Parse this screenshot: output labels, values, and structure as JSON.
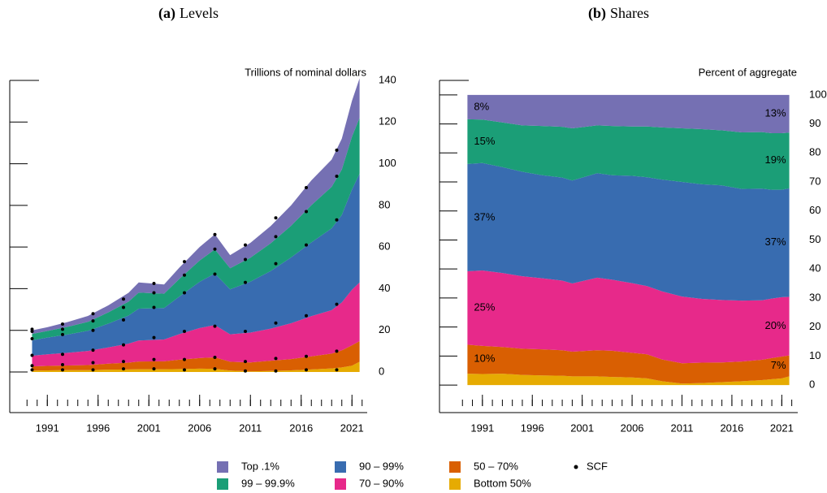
{
  "chart_data": [
    {
      "type": "area",
      "stacked": true,
      "label": "(a)",
      "title": "Levels",
      "ylabel": "Trillions of nominal dollars",
      "x": [
        1989.5,
        1991,
        1993,
        1995,
        1997,
        1999,
        2000,
        2002.5,
        2004,
        2006,
        2007.5,
        2009,
        2011,
        2013,
        2015,
        2017,
        2019,
        2020,
        2021,
        2021.75
      ],
      "series": [
        {
          "name": "Top .1%",
          "color": "#7570b3",
          "values": [
            1.7,
            1.8,
            2.3,
            2.8,
            3.4,
            4.2,
            4.9,
            4.4,
            5.4,
            6.5,
            7.2,
            6.3,
            7.1,
            8.3,
            9.8,
            11.9,
            13.1,
            14.8,
            17.2,
            19.0
          ]
        },
        {
          "name": "99 – 99.9%",
          "color": "#1b9e77",
          "values": [
            3.1,
            3.2,
            3.7,
            4.3,
            5.4,
            6.7,
            7.7,
            6.9,
            8.5,
            10.2,
            11.6,
            10.1,
            11.5,
            13.3,
            15.2,
            17.9,
            19.9,
            21.8,
            25.4,
            26.8
          ]
        },
        {
          "name": "90 – 99%",
          "color": "#386cb0",
          "values": [
            7.4,
            8.0,
            8.8,
            9.7,
            11.4,
            13.5,
            15.3,
            15.1,
            18.0,
            22.2,
            24.8,
            21.6,
            24.5,
            27.7,
            31.6,
            35.4,
            39.3,
            42.0,
            48.1,
            52.2
          ]
        },
        {
          "name": "70 – 90%",
          "color": "#e7298a",
          "values": [
            5.1,
            5.6,
            6.1,
            6.8,
            7.8,
            9.1,
            10.1,
            10.5,
            12.3,
            14.4,
            15.5,
            13.2,
            14.3,
            15.4,
            17.2,
            19.3,
            20.9,
            23.0,
            26.7,
            28.2
          ]
        },
        {
          "name": "50 – 70%",
          "color": "#d95f02",
          "values": [
            2.0,
            2.1,
            2.2,
            2.4,
            2.9,
            3.3,
            3.7,
            3.8,
            4.5,
            5.1,
            5.5,
            4.2,
            4.3,
            4.9,
            5.4,
            6.3,
            7.1,
            8.2,
            9.8,
            9.9
          ]
        },
        {
          "name": "Bottom 50%",
          "color": "#e6ab02",
          "values": [
            0.7,
            0.8,
            0.9,
            0.9,
            1.1,
            1.2,
            1.3,
            1.3,
            1.4,
            1.6,
            1.5,
            0.7,
            0.3,
            0.5,
            0.8,
            1.2,
            1.7,
            2.2,
            3.0,
            4.9
          ]
        }
      ],
      "scf": {
        "name": "SCF",
        "color": "#000000",
        "x": [
          1989.5,
          1992.5,
          1995.5,
          1998.5,
          2001.5,
          2004.5,
          2007.5,
          2010.5,
          2013.5,
          2016.5,
          2019.5
        ],
        "values": [
          [
            1,
            3,
            8,
            16,
            19.5,
            20.5
          ],
          [
            1,
            3.5,
            8.5,
            18,
            20.5,
            23
          ],
          [
            1,
            4.5,
            10.5,
            20,
            24.5,
            28
          ],
          [
            1.5,
            5,
            13,
            25,
            31,
            35
          ],
          [
            1.5,
            6,
            16.5,
            31,
            38,
            42.5
          ],
          [
            1,
            6,
            19.5,
            38,
            46.5,
            53
          ],
          [
            1.5,
            7,
            22,
            47,
            59,
            66
          ],
          [
            0.5,
            5,
            19.5,
            43,
            54,
            61
          ],
          [
            0.5,
            6.5,
            23.5,
            52,
            65,
            74
          ],
          [
            1,
            7.5,
            27,
            61,
            77,
            88.5
          ],
          [
            1,
            10,
            32.5,
            73,
            94,
            106.5
          ]
        ]
      },
      "xlim": [
        1987.3,
        2022.5
      ],
      "xticks": [
        1991,
        1996,
        2001,
        2006,
        2011,
        2016,
        2021
      ],
      "xminorticks": [
        1989,
        1990,
        1991,
        1992,
        1993,
        1994,
        1995,
        1996,
        1997,
        1998,
        1999,
        2000,
        2001,
        2002,
        2003,
        2004,
        2005,
        2006,
        2007,
        2008,
        2009,
        2010,
        2011,
        2012,
        2013,
        2014,
        2015,
        2016,
        2017,
        2018,
        2019,
        2020,
        2021,
        2022
      ],
      "ylim": [
        -19.5,
        140
      ],
      "yticks": [
        0,
        20,
        40,
        60,
        80,
        100,
        120,
        140
      ]
    },
    {
      "type": "area",
      "stacked": true,
      "label": "(b)",
      "title": "Shares",
      "ylabel": "Percent of aggregate",
      "x": [
        1989.5,
        1991,
        1993,
        1995,
        1997,
        1999,
        2000,
        2002.5,
        2004,
        2006,
        2007.5,
        2009,
        2011,
        2013,
        2015,
        2017,
        2019,
        2020,
        2021,
        2021.75
      ],
      "series": [
        {
          "name": "Top .1%",
          "color": "#7570b3",
          "values": [
            8.4,
            8.5,
            9.5,
            10.5,
            10.7,
            11,
            11.5,
            10.5,
            10.7,
            10.9,
            10.9,
            11.2,
            11.5,
            11.8,
            12.2,
            12.9,
            12.8,
            13.2,
            13.2,
            13.0
          ],
          "value_labels": [
            "8%",
            null,
            null,
            null,
            null,
            null,
            null,
            null,
            null,
            null,
            null,
            null,
            null,
            null,
            null,
            null,
            null,
            null,
            null,
            "13%"
          ]
        },
        {
          "name": "99 – 99.9%",
          "color": "#1b9e77",
          "values": [
            15.4,
            15,
            15.4,
            16,
            17,
            17.5,
            18,
            16.5,
            17,
            17,
            17.5,
            18,
            18.5,
            19,
            19,
            19.5,
            19.5,
            19.5,
            19.5,
            19.2
          ],
          "value_labels": [
            "15%",
            null,
            null,
            null,
            null,
            null,
            null,
            null,
            null,
            null,
            null,
            null,
            null,
            null,
            null,
            null,
            null,
            null,
            null,
            "19%"
          ]
        },
        {
          "name": "90 – 99%",
          "color": "#386cb0",
          "values": [
            37,
            37,
            36.5,
            36,
            35.5,
            35.5,
            35.5,
            36,
            36,
            37,
            37.5,
            38.5,
            39.5,
            39.5,
            39.5,
            38.5,
            38.5,
            37.5,
            37,
            37.4
          ],
          "value_labels": [
            "37%",
            null,
            null,
            null,
            null,
            null,
            null,
            null,
            null,
            null,
            null,
            null,
            null,
            null,
            null,
            null,
            null,
            null,
            null,
            "37%"
          ]
        },
        {
          "name": "70 – 90%",
          "color": "#e7298a",
          "values": [
            25.3,
            26,
            25.5,
            25,
            24.5,
            24,
            23.5,
            25,
            24.5,
            24,
            23.5,
            23.5,
            23,
            22,
            21.5,
            21,
            20.5,
            20.5,
            20.5,
            20.2
          ],
          "value_labels": [
            "25%",
            null,
            null,
            null,
            null,
            null,
            null,
            null,
            null,
            null,
            null,
            null,
            null,
            null,
            null,
            null,
            null,
            null,
            null,
            "20%"
          ]
        },
        {
          "name": "50 – 70%",
          "color": "#d95f02",
          "values": [
            10,
            9.7,
            9.2,
            9,
            9,
            8.8,
            8.5,
            9,
            9,
            8.5,
            8.3,
            7.5,
            7,
            7,
            6.8,
            6.8,
            7,
            7.3,
            7.5,
            7.2
          ],
          "value_labels": [
            "10%",
            null,
            null,
            null,
            null,
            null,
            null,
            null,
            null,
            null,
            null,
            null,
            null,
            null,
            null,
            null,
            null,
            null,
            null,
            "7%"
          ]
        },
        {
          "name": "Bottom 50%",
          "color": "#e6ab02",
          "values": [
            3.9,
            3.8,
            3.9,
            3.5,
            3.3,
            3.2,
            3,
            3,
            2.8,
            2.6,
            2.3,
            1.3,
            0.5,
            0.7,
            1,
            1.3,
            1.7,
            2,
            2.3,
            3.0
          ]
        }
      ],
      "xlim": [
        1986.7,
        2022.6
      ],
      "xticks": [
        1991,
        1996,
        2001,
        2006,
        2011,
        2016,
        2021
      ],
      "xminorticks": [
        1989,
        1990,
        1991,
        1992,
        1993,
        1994,
        1995,
        1996,
        1997,
        1998,
        1999,
        2000,
        2001,
        2002,
        2003,
        2004,
        2005,
        2006,
        2007,
        2008,
        2009,
        2010,
        2011,
        2012,
        2013,
        2014,
        2015,
        2016,
        2017,
        2018,
        2019,
        2020,
        2021,
        2022
      ],
      "ylim": [
        -9.5,
        105
      ],
      "yticks": [
        0,
        10,
        20,
        30,
        40,
        50,
        60,
        70,
        80,
        90,
        100
      ]
    }
  ]
}
